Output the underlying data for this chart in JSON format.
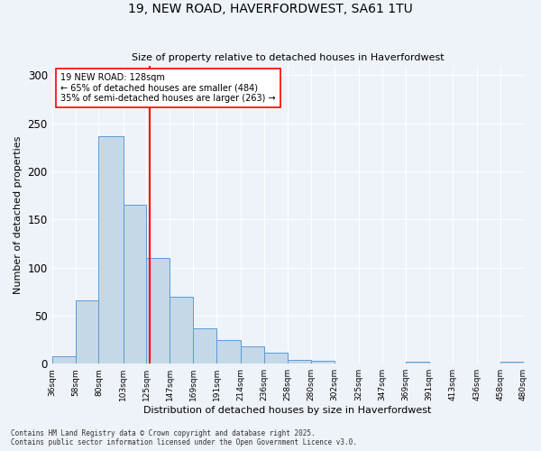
{
  "title1": "19, NEW ROAD, HAVERFORDWEST, SA61 1TU",
  "title2": "Size of property relative to detached houses in Haverfordwest",
  "xlabel": "Distribution of detached houses by size in Haverfordwest",
  "ylabel": "Number of detached properties",
  "annotation_line1": "19 NEW ROAD: 128sqm",
  "annotation_line2": "← 65% of detached houses are smaller (484)",
  "annotation_line3": "35% of semi-detached houses are larger (263) →",
  "property_size": 128,
  "bin_edges": [
    36,
    58,
    80,
    103,
    125,
    147,
    169,
    191,
    214,
    236,
    258,
    280,
    302,
    325,
    347,
    369,
    391,
    413,
    436,
    458,
    480
  ],
  "bar_values": [
    8,
    66,
    236,
    165,
    110,
    70,
    37,
    25,
    18,
    11,
    4,
    3,
    0,
    0,
    0,
    2,
    0,
    0,
    0,
    2
  ],
  "bar_color": "#c5d8e8",
  "bar_edge_color": "#5b9bd5",
  "vline_color": "red",
  "vline_x": 128,
  "annotation_box_color": "red",
  "annotation_text_color": "black",
  "background_color": "#eef2f9",
  "grid_color": "white",
  "footer_line1": "Contains HM Land Registry data © Crown copyright and database right 2025.",
  "footer_line2": "Contains public sector information licensed under the Open Government Licence v3.0.",
  "ylim": [
    0,
    310
  ],
  "yticks": [
    0,
    50,
    100,
    150,
    200,
    250,
    300
  ]
}
